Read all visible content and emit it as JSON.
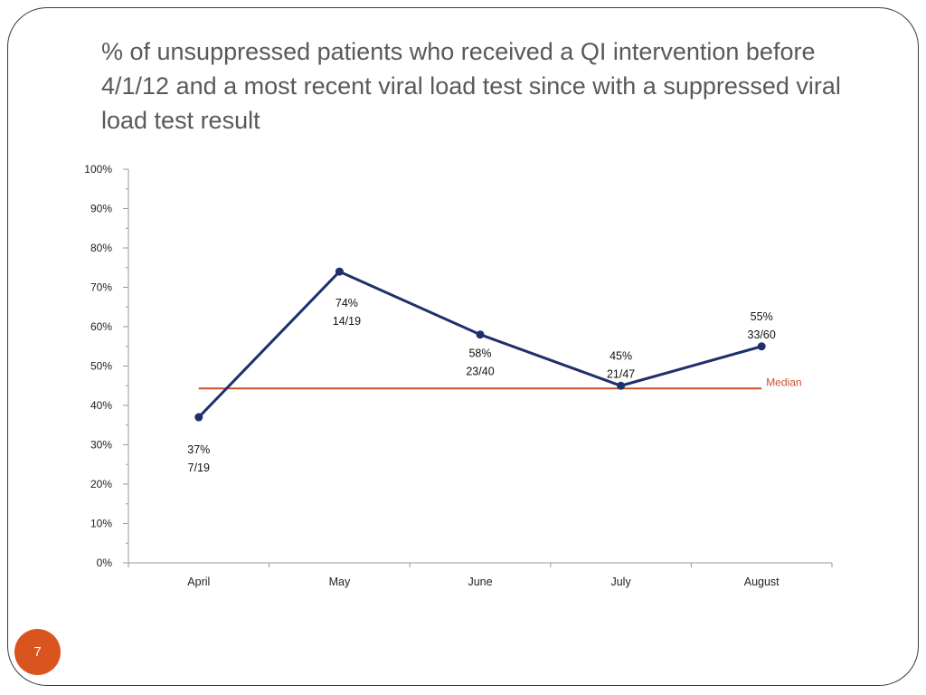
{
  "slide": {
    "title": "% of unsuppressed patients who received a QI intervention before 4/1/12 and a most recent viral load test since with a suppressed viral load test result",
    "page_number": "7"
  },
  "colors": {
    "series": "#1f2f6b",
    "median": "#c8502b",
    "badge": "#d9541e",
    "title": "#595959"
  },
  "chart_data": {
    "type": "line",
    "categories": [
      "April",
      "May",
      "June",
      "July",
      "August"
    ],
    "series": [
      {
        "values": [
          37,
          74,
          58,
          45,
          55
        ]
      }
    ],
    "point_labels": [
      {
        "pct": "37%",
        "frac": "7/19"
      },
      {
        "pct": "74%",
        "frac": "14/19"
      },
      {
        "pct": "58%",
        "frac": "23/40"
      },
      {
        "pct": "45%",
        "frac": "21/47"
      },
      {
        "pct": "55%",
        "frac": "33/60"
      }
    ],
    "median": {
      "label": "Median",
      "value": 44.3
    },
    "ylim": [
      0,
      100
    ],
    "yticks": [
      "0%",
      "10%",
      "20%",
      "30%",
      "40%",
      "50%",
      "60%",
      "70%",
      "80%",
      "90%",
      "100%"
    ],
    "grid": false,
    "legend": "none"
  }
}
